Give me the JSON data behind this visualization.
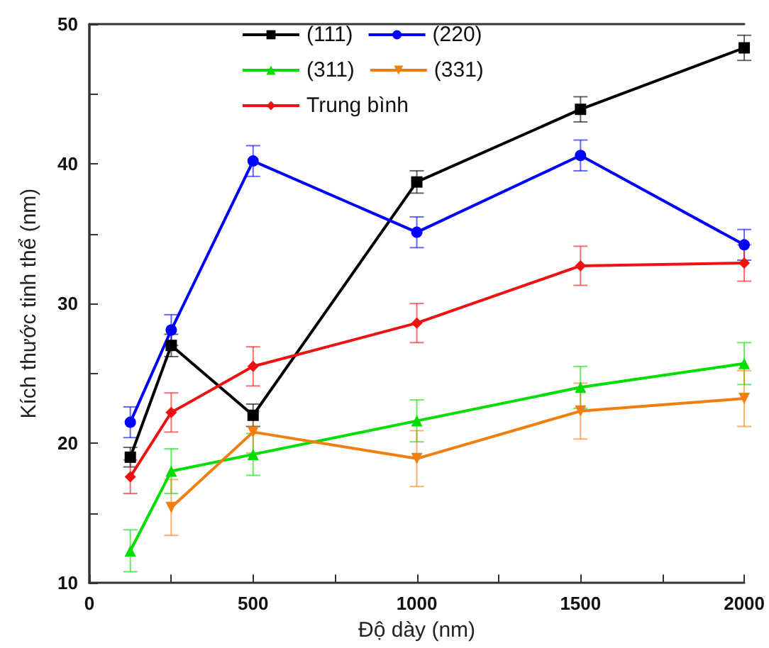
{
  "chart_data": {
    "type": "line",
    "xlabel": "Độ dày (nm)",
    "ylabel": "Kích thước tinh thể (nm)",
    "x": [
      125,
      250,
      500,
      1000,
      1500,
      2000
    ],
    "xlim": [
      0,
      2000
    ],
    "xticks": [
      0,
      500,
      1000,
      1500,
      2000
    ],
    "ylim": [
      10,
      50
    ],
    "yticks": [
      10,
      20,
      30,
      40,
      50
    ],
    "grid": false,
    "legend": "top",
    "line_style": "solid",
    "series": [
      {
        "name": "(111)",
        "color": "#000000",
        "marker": "square",
        "values": [
          19.0,
          27.0,
          22.0,
          38.7,
          43.9,
          48.3
        ],
        "errors": [
          0.7,
          0.8,
          0.8,
          0.8,
          0.9,
          0.9
        ]
      },
      {
        "name": "(220)",
        "color": "#0000ff",
        "marker": "circle",
        "values": [
          21.5,
          28.1,
          40.2,
          35.1,
          40.6,
          34.2
        ],
        "errors": [
          1.1,
          1.1,
          1.1,
          1.1,
          1.1,
          1.1
        ]
      },
      {
        "name": "(311)",
        "color": "#00dd00",
        "marker": "triangle",
        "values": [
          12.3,
          18.0,
          19.2,
          21.6,
          24.0,
          25.7
        ],
        "errors": [
          1.5,
          1.6,
          1.5,
          1.5,
          1.5,
          1.5
        ]
      },
      {
        "name": "(331)",
        "color": "#f07f10",
        "marker": "triangle-down",
        "values": [
          null,
          15.4,
          20.8,
          18.9,
          22.3,
          23.2
        ],
        "errors": [
          null,
          2.0,
          1.5,
          2.0,
          2.0,
          2.0
        ]
      },
      {
        "name": "Trung bình",
        "color": "#ee1111",
        "marker": "diamond",
        "values": [
          17.6,
          22.2,
          25.5,
          28.6,
          32.7,
          32.9
        ],
        "errors": [
          1.2,
          1.4,
          1.4,
          1.4,
          1.4,
          1.3
        ]
      }
    ]
  }
}
